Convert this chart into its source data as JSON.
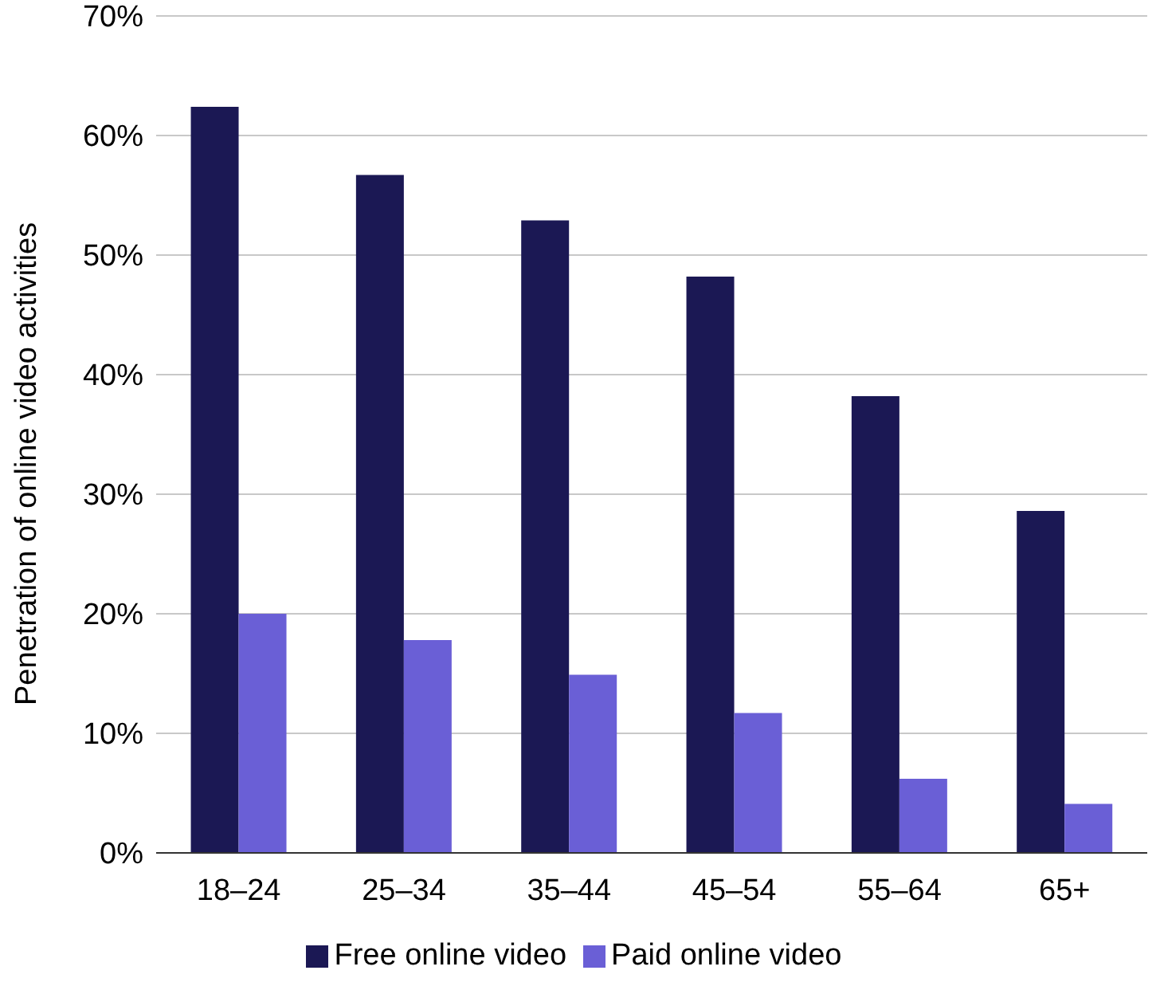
{
  "chart_data": {
    "type": "bar",
    "ylabel": "Penetration of online video activities",
    "categories": [
      "18–24",
      "25–34",
      "35–44",
      "45–54",
      "55–64",
      "65+"
    ],
    "series": [
      {
        "name": "Free online video",
        "color": "#1b1854",
        "values": [
          62.4,
          56.7,
          52.9,
          48.2,
          38.2,
          28.6
        ]
      },
      {
        "name": "Paid online video",
        "color": "#6a5fd6",
        "values": [
          20.0,
          17.8,
          14.9,
          11.7,
          6.2,
          4.1
        ]
      }
    ],
    "ylim": [
      0,
      70
    ],
    "yticks": [
      {
        "value": 0,
        "label": "0%"
      },
      {
        "value": 10,
        "label": "10%"
      },
      {
        "value": 20,
        "label": "20%"
      },
      {
        "value": 30,
        "label": "30%"
      },
      {
        "value": 40,
        "label": "40%"
      },
      {
        "value": 50,
        "label": "50%"
      },
      {
        "value": 60,
        "label": "60%"
      },
      {
        "value": 70,
        "label": "70%"
      }
    ],
    "grid": "y",
    "legend": "bottom"
  }
}
